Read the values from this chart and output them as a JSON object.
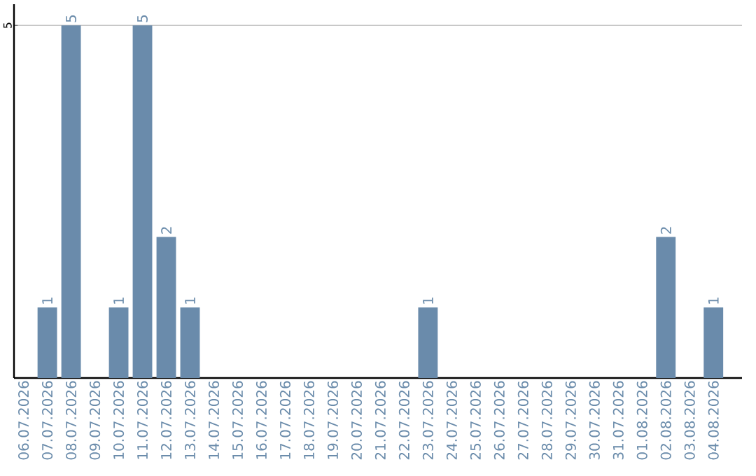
{
  "chart_data": {
    "type": "bar",
    "categories": [
      "06.07.2026",
      "07.07.2026",
      "08.07.2026",
      "09.07.2026",
      "10.07.2026",
      "11.07.2026",
      "12.07.2026",
      "13.07.2026",
      "14.07.2026",
      "15.07.2026",
      "16.07.2026",
      "17.07.2026",
      "18.07.2026",
      "19.07.2026",
      "20.07.2026",
      "21.07.2026",
      "22.07.2026",
      "23.07.2026",
      "24.07.2026",
      "25.07.2026",
      "26.07.2026",
      "27.07.2026",
      "28.07.2026",
      "29.07.2026",
      "30.07.2026",
      "31.07.2026",
      "01.08.2026",
      "02.08.2026",
      "03.08.2026",
      "04.08.2026"
    ],
    "values": [
      0,
      1,
      5,
      0,
      1,
      5,
      2,
      1,
      0,
      0,
      0,
      0,
      0,
      0,
      0,
      0,
      0,
      1,
      0,
      0,
      0,
      0,
      0,
      0,
      0,
      0,
      0,
      2,
      0,
      1
    ],
    "value_labels": [
      null,
      "1",
      "5",
      null,
      "1",
      "5",
      "2",
      "1",
      null,
      null,
      null,
      null,
      null,
      null,
      null,
      null,
      null,
      "1",
      null,
      null,
      null,
      null,
      null,
      null,
      null,
      null,
      null,
      "2",
      null,
      "1"
    ],
    "color": "#6a8bab",
    "ylim": [
      0,
      5.3
    ],
    "yticks": [
      5
    ],
    "grid": "y"
  }
}
